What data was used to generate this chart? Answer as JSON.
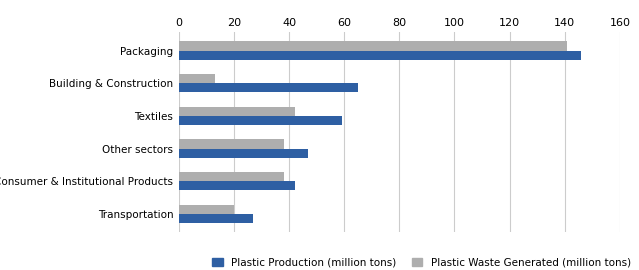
{
  "categories": [
    "Packaging",
    "Building & Construction",
    "Textiles",
    "Other sectors",
    "Consumer & Institutional Products",
    "Transportation"
  ],
  "production": [
    146,
    65,
    59,
    47,
    42,
    27
  ],
  "waste": [
    141,
    13,
    42,
    38,
    38,
    20
  ],
  "production_color": "#2E5FA3",
  "waste_color": "#AEAEAE",
  "legend_labels": [
    "Plastic Production (million tons)",
    "Plastic Waste Generated (million tons)"
  ],
  "xlim": [
    0,
    160
  ],
  "xticks": [
    0,
    20,
    40,
    60,
    80,
    100,
    120,
    140,
    160
  ],
  "bar_height": 0.28,
  "figsize": [
    6.39,
    2.7
  ],
  "dpi": 100
}
